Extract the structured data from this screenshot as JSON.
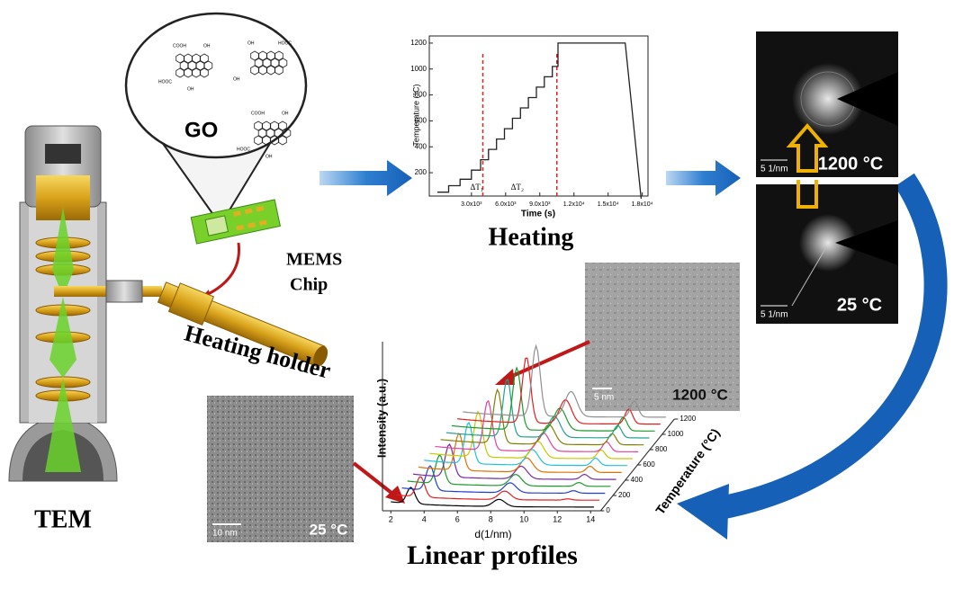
{
  "tem": {
    "label": "TEM"
  },
  "go_bubble": {
    "label": "GO",
    "molecules": [
      {
        "labels": [
          "COOH",
          "OH",
          "HOOC",
          "OH"
        ]
      },
      {
        "labels": [
          "OH",
          "HOOC",
          "OH"
        ]
      },
      {
        "labels": [
          "COOH",
          "OH",
          "HOOC",
          "OH"
        ]
      }
    ]
  },
  "mems_chip": {
    "label_lines": [
      "MEMS",
      "Chip"
    ]
  },
  "holder": {
    "label": "Heating holder"
  },
  "heating_plot": {
    "type": "line",
    "caption": "Heating",
    "x_label": "Time (s)",
    "y_label": "Temperature (°C)",
    "color": "#222222",
    "dashed_color": "#e02020",
    "xlim": [
      -700,
      18500
    ],
    "ylim": [
      20,
      1255
    ],
    "xticks": [
      {
        "value": 3000,
        "label": "3.0x10³"
      },
      {
        "value": 6000,
        "label": "6.0x10³"
      },
      {
        "value": 9000,
        "label": "9.0x10³"
      },
      {
        "value": 12000,
        "label": "1.2x10⁴"
      },
      {
        "value": 15000,
        "label": "1.5x10⁴"
      },
      {
        "value": 18000,
        "label": "1.8x10⁴"
      }
    ],
    "yticks": [
      200,
      400,
      600,
      800,
      1000,
      1200
    ],
    "x": [
      0,
      1000,
      1000,
      2000,
      2000,
      3000,
      3000,
      3800,
      3800,
      4500,
      4500,
      5200,
      5200,
      5900,
      5900,
      6600,
      6600,
      7300,
      7300,
      8000,
      8000,
      8700,
      8700,
      9400,
      9400,
      10100,
      10100,
      10600,
      10600,
      16500,
      17900
    ],
    "values": [
      50,
      50,
      100,
      100,
      150,
      150,
      220,
      220,
      300,
      300,
      380,
      380,
      460,
      460,
      540,
      540,
      620,
      620,
      700,
      700,
      780,
      780,
      860,
      860,
      940,
      940,
      1020,
      1020,
      1200,
      1200,
      0
    ],
    "dashed_lines": [
      4000,
      10500
    ],
    "annotations": [
      "ΔT₁",
      "ΔT₂"
    ]
  },
  "diffraction": [
    {
      "temperature": "1200 °C",
      "scale_bar": "5 1/nm"
    },
    {
      "temperature": "25 °C",
      "scale_bar": "5 1/nm"
    }
  ],
  "hrtem": [
    {
      "temperature": "1200 °C",
      "scale_bar": "5 nm"
    },
    {
      "temperature": "25 °C",
      "scale_bar": "10 nm"
    }
  ],
  "profiles": {
    "caption": "Linear profiles",
    "x_label": "d(1/nm)",
    "y_label": "Intensity (a.u.)",
    "z_label": "Temperature (°C)",
    "xticks": [
      2,
      4,
      6,
      8,
      10,
      12,
      14
    ],
    "zticks": [
      0,
      200,
      400,
      600,
      800,
      1000,
      1200
    ],
    "curve_colors": [
      "#000000",
      "#e02020",
      "#1f3fd0",
      "#1a9a2a",
      "#7a2a9a",
      "#e07000",
      "#20c0e0",
      "#c8c800",
      "#e040a0",
      "#808000",
      "#20a090",
      "#1a9a2a",
      "#e02020",
      "#909090"
    ]
  }
}
